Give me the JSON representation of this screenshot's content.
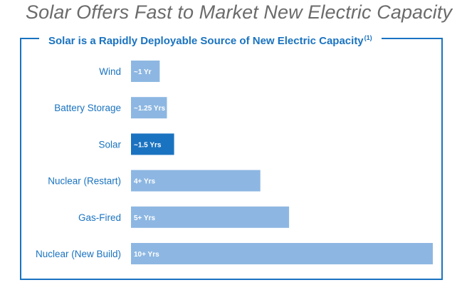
{
  "page_title": "Solar Offers Fast to Market New Electric Capacity",
  "subtitle": "Solar is a Rapidly Deployable Source of New Electric Capacity",
  "subtitle_footnote": "(1)",
  "colors": {
    "accent": "#1a73c0",
    "bar": "#8db7e2",
    "highlight": "#1a73c0"
  },
  "chart_data": {
    "type": "bar",
    "orientation": "horizontal",
    "categories": [
      "Wind",
      "Battery Storage",
      "Solar",
      "Nuclear (Restart)",
      "Gas-Fired",
      "Nuclear (New Build)"
    ],
    "values": [
      1,
      1.25,
      1.5,
      4.5,
      5.5,
      10.5
    ],
    "data_labels": [
      "~1 Yr",
      "~1.25 Yrs",
      "~1.5 Yrs",
      "4+ Yrs",
      "5+ Yrs",
      "10+ Yrs"
    ],
    "highlight": "Solar",
    "xlim": [
      0,
      10.5
    ],
    "grid": false,
    "legend": false
  }
}
